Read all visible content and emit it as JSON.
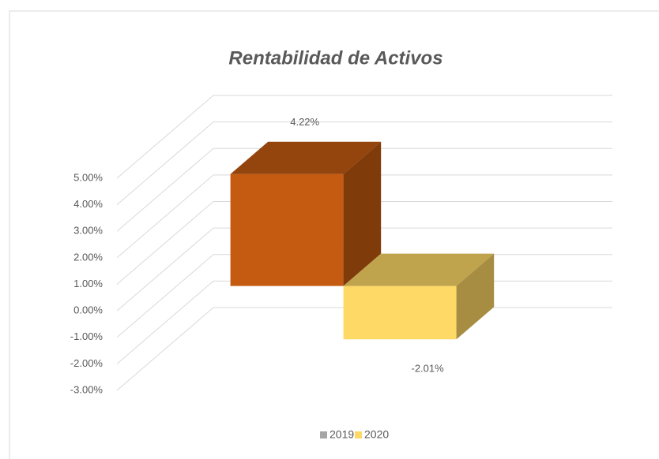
{
  "chart_data": {
    "type": "bar3d",
    "title": "Rentabilidad de Activos",
    "categories": [
      null
    ],
    "series": [
      {
        "name": "2019",
        "color": "#c55a11",
        "legend_color": "#a5a5a5",
        "values": [
          4.22
        ],
        "value_labels": [
          "4.22%"
        ]
      },
      {
        "name": "2020",
        "color": "#ffd966",
        "legend_color": "#ffd966",
        "values": [
          -2.01
        ],
        "value_labels": [
          "-2.01%"
        ]
      }
    ],
    "ylim": [
      -3,
      5
    ],
    "yticks": [
      {
        "value": -3,
        "label": "-3.00%"
      },
      {
        "value": -2,
        "label": "-2.00%"
      },
      {
        "value": -1,
        "label": "-1.00%"
      },
      {
        "value": 0,
        "label": "0.00%"
      },
      {
        "value": 1,
        "label": "1.00%"
      },
      {
        "value": 2,
        "label": "2.00%"
      },
      {
        "value": 3,
        "label": "3.00%"
      },
      {
        "value": 4,
        "label": "4.00%"
      },
      {
        "value": 5,
        "label": "5.00%"
      }
    ],
    "grid": true,
    "legend": "bottom"
  }
}
